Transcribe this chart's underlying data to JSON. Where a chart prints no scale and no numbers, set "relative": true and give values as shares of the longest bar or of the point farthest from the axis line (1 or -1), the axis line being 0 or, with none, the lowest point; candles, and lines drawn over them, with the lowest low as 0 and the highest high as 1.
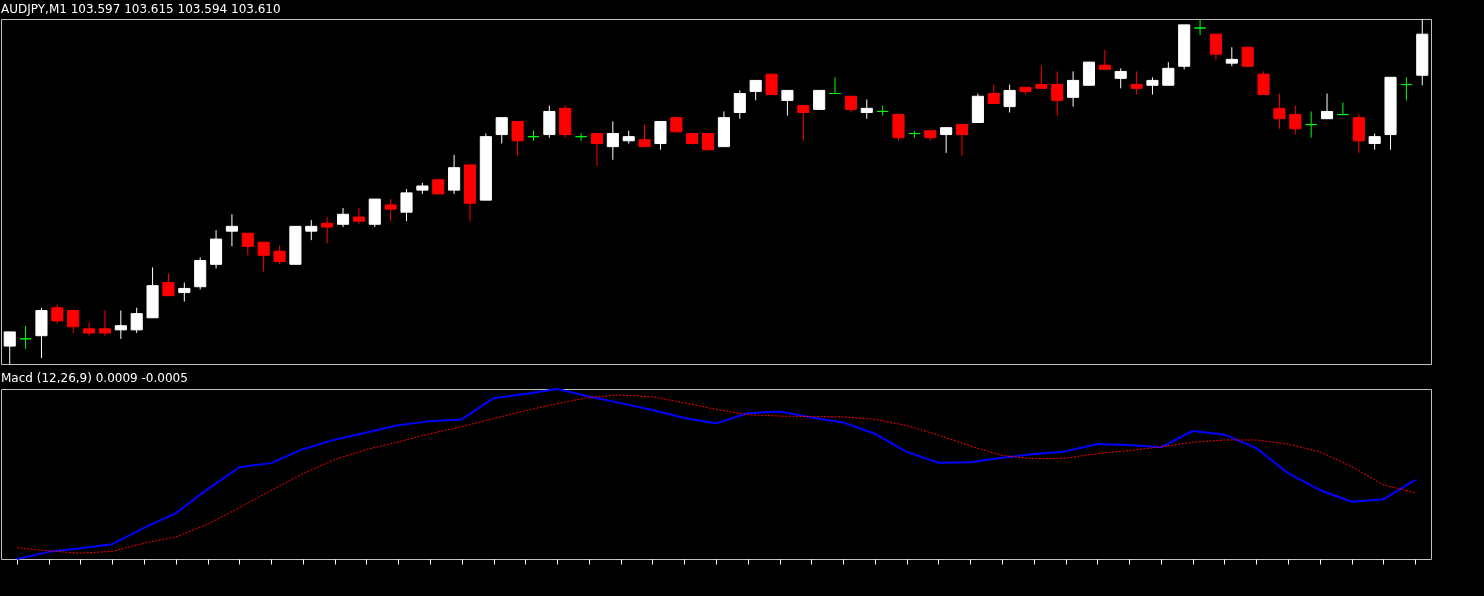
{
  "chart_data": [
    {
      "type": "candlestick",
      "title": "AUDJPY,M1  103.597 103.615 103.594 103.610",
      "relative": true,
      "tick_labels": false,
      "categories": [
        null,
        null,
        null,
        null,
        null,
        null,
        null,
        null,
        null,
        null,
        null,
        null,
        null,
        null,
        null,
        null,
        null,
        null,
        null,
        null,
        null,
        null,
        null,
        null,
        null,
        null,
        null,
        null,
        null,
        null,
        null,
        null,
        null,
        null,
        null,
        null,
        null,
        null,
        null,
        null,
        null,
        null,
        null,
        null,
        null,
        null,
        null,
        null,
        null,
        null,
        null,
        null,
        null,
        null,
        null,
        null,
        null,
        null,
        null,
        null,
        null,
        null,
        null,
        null,
        null,
        null,
        null,
        null,
        null,
        null,
        null,
        null,
        null,
        null,
        null,
        null,
        null,
        null,
        null,
        null,
        null,
        null,
        null,
        null,
        null,
        null,
        null,
        null,
        null,
        null
      ],
      "ohlc": [
        [
          0.052,
          0.093,
          0,
          0.093
        ],
        [
          0.073,
          0.111,
          0.044,
          0.073
        ],
        [
          0.082,
          0.163,
          0.017,
          0.155
        ],
        [
          0.163,
          0.172,
          0.117,
          0.125
        ],
        [
          0.155,
          0.155,
          0.09,
          0.108
        ],
        [
          0.102,
          0.12,
          0.082,
          0.09
        ],
        [
          0.102,
          0.155,
          0.082,
          0.09
        ],
        [
          0.099,
          0.155,
          0.073,
          0.111
        ],
        [
          0.099,
          0.163,
          0.09,
          0.146
        ],
        [
          0.134,
          0.28,
          0.134,
          0.227
        ],
        [
          0.236,
          0.262,
          0.198,
          0.198
        ],
        [
          0.207,
          0.236,
          0.181,
          0.219
        ],
        [
          0.224,
          0.309,
          0.216,
          0.3
        ],
        [
          0.289,
          0.388,
          0.277,
          0.362
        ],
        [
          0.385,
          0.434,
          0.341,
          0.399
        ],
        [
          0.379,
          0.379,
          0.315,
          0.341
        ],
        [
          0.353,
          0.353,
          0.268,
          0.315
        ],
        [
          0.327,
          0.344,
          0.289,
          0.297
        ],
        [
          0.289,
          0.399,
          0.289,
          0.399
        ],
        [
          0.385,
          0.417,
          0.359,
          0.399
        ],
        [
          0.408,
          0.426,
          0.35,
          0.397
        ],
        [
          0.405,
          0.452,
          0.397,
          0.434
        ],
        [
          0.426,
          0.452,
          0.405,
          0.414
        ],
        [
          0.405,
          0.478,
          0.397,
          0.478
        ],
        [
          0.461,
          0.478,
          0.414,
          0.449
        ],
        [
          0.44,
          0.507,
          0.414,
          0.496
        ],
        [
          0.504,
          0.525,
          0.493,
          0.516
        ],
        [
          0.534,
          0.534,
          0.493,
          0.493
        ],
        [
          0.504,
          0.606,
          0.493,
          0.569
        ],
        [
          0.577,
          0.577,
          0.414,
          0.466
        ],
        [
          0.475,
          0.668,
          0.475,
          0.659
        ],
        [
          0.665,
          0.714,
          0.639,
          0.714
        ],
        [
          0.703,
          0.703,
          0.604,
          0.647
        ],
        [
          0.659,
          0.676,
          0.647,
          0.659
        ],
        [
          0.665,
          0.749,
          0.656,
          0.732
        ],
        [
          0.741,
          0.749,
          0.656,
          0.665
        ],
        [
          0.659,
          0.668,
          0.647,
          0.659
        ],
        [
          0.668,
          0.668,
          0.574,
          0.639
        ],
        [
          0.63,
          0.703,
          0.592,
          0.668
        ],
        [
          0.647,
          0.676,
          0.639,
          0.659
        ],
        [
          0.65,
          0.694,
          0.63,
          0.63
        ],
        [
          0.639,
          0.703,
          0.621,
          0.703
        ],
        [
          0.714,
          0.714,
          0.673,
          0.673
        ],
        [
          0.668,
          0.668,
          0.639,
          0.639
        ],
        [
          0.668,
          0.668,
          0.621,
          0.621
        ],
        [
          0.63,
          0.732,
          0.63,
          0.714
        ],
        [
          0.729,
          0.793,
          0.711,
          0.784
        ],
        [
          0.79,
          0.822,
          0.764,
          0.822
        ],
        [
          0.84,
          0.84,
          0.781,
          0.781
        ],
        [
          0.764,
          0.793,
          0.72,
          0.793
        ],
        [
          0.749,
          0.749,
          0.647,
          0.729
        ],
        [
          0.738,
          0.793,
          0.738,
          0.793
        ],
        [
          0.784,
          0.831,
          0.784,
          0.784
        ],
        [
          0.776,
          0.776,
          0.729,
          0.738
        ],
        [
          0.729,
          0.767,
          0.711,
          0.741
        ],
        [
          0.732,
          0.749,
          0.72,
          0.732
        ],
        [
          0.723,
          0.723,
          0.647,
          0.656
        ],
        [
          0.668,
          0.676,
          0.656,
          0.668
        ],
        [
          0.676,
          0.676,
          0.647,
          0.656
        ],
        [
          0.665,
          0.685,
          0.612,
          0.685
        ],
        [
          0.694,
          0.694,
          0.604,
          0.665
        ],
        [
          0.7,
          0.784,
          0.7,
          0.776
        ],
        [
          0.784,
          0.81,
          0.755,
          0.755
        ],
        [
          0.746,
          0.81,
          0.729,
          0.793
        ],
        [
          0.802,
          0.802,
          0.781,
          0.79
        ],
        [
          0.81,
          0.866,
          0.799,
          0.799
        ],
        [
          0.81,
          0.848,
          0.72,
          0.764
        ],
        [
          0.773,
          0.848,
          0.746,
          0.822
        ],
        [
          0.808,
          0.875,
          0.808,
          0.875
        ],
        [
          0.866,
          0.91,
          0.854,
          0.854
        ],
        [
          0.828,
          0.857,
          0.799,
          0.848
        ],
        [
          0.81,
          0.848,
          0.781,
          0.799
        ],
        [
          0.808,
          0.831,
          0.781,
          0.822
        ],
        [
          0.808,
          0.875,
          0.808,
          0.857
        ],
        [
          0.863,
          0.983,
          0.854,
          0.983
        ],
        [
          0.974,
          1,
          0.953,
          0.974
        ],
        [
          0.956,
          0.956,
          0.88,
          0.898
        ],
        [
          0.872,
          0.918,
          0.863,
          0.883
        ],
        [
          0.918,
          0.918,
          0.863,
          0.863
        ],
        [
          0.84,
          0.848,
          0.781,
          0.781
        ],
        [
          0.741,
          0.784,
          0.682,
          0.711
        ],
        [
          0.723,
          0.749,
          0.665,
          0.682
        ],
        [
          0.694,
          0.732,
          0.656,
          0.694
        ],
        [
          0.711,
          0.784,
          0.711,
          0.732
        ],
        [
          0.723,
          0.758,
          0.723,
          0.723
        ],
        [
          0.714,
          0.723,
          0.612,
          0.647
        ],
        [
          0.639,
          0.668,
          0.621,
          0.659
        ],
        [
          0.665,
          0.831,
          0.621,
          0.831
        ],
        [
          0.81,
          0.831,
          0.764,
          0.81
        ],
        [
          0.837,
          1,
          0.808,
          0.956
        ]
      ],
      "colors": [
        "#ffffff",
        "#00ff00",
        "#ffffff",
        "#ff0000",
        "#ff0000",
        "#ff0000",
        "#ff0000",
        "#ffffff",
        "#ffffff",
        "#ffffff",
        "#ff0000",
        "#ffffff",
        "#ffffff",
        "#ffffff",
        "#ffffff",
        "#ff0000",
        "#ff0000",
        "#ff0000",
        "#ffffff",
        "#ffffff",
        "#ff0000",
        "#ffffff",
        "#ff0000",
        "#ffffff",
        "#ff0000",
        "#ffffff",
        "#ffffff",
        "#ff0000",
        "#ffffff",
        "#ff0000",
        "#ffffff",
        "#ffffff",
        "#ff0000",
        "#00ff00",
        "#ffffff",
        "#ff0000",
        "#00ff00",
        "#ff0000",
        "#ffffff",
        "#ffffff",
        "#ff0000",
        "#ffffff",
        "#ff0000",
        "#ff0000",
        "#ff0000",
        "#ffffff",
        "#ffffff",
        "#ffffff",
        "#ff0000",
        "#ffffff",
        "#ff0000",
        "#ffffff",
        "#00ff00",
        "#ff0000",
        "#ffffff",
        "#00ff00",
        "#ff0000",
        "#00ff00",
        "#ff0000",
        "#ffffff",
        "#ff0000",
        "#ffffff",
        "#ff0000",
        "#ffffff",
        "#ff0000",
        "#ff0000",
        "#ff0000",
        "#ffffff",
        "#ffffff",
        "#ff0000",
        "#ffffff",
        "#ff0000",
        "#ffffff",
        "#ffffff",
        "#ffffff",
        "#00ff00",
        "#ff0000",
        "#ffffff",
        "#ff0000",
        "#ff0000",
        "#ff0000",
        "#ff0000",
        "#00ff00",
        "#ffffff",
        "#00ff00",
        "#ff0000",
        "#ffffff",
        "#ffffff",
        "#00ff00",
        "#ffffff"
      ]
    },
    {
      "type": "line",
      "title": "Macd (12,26,9) 0.0009 -0.0005",
      "relative": true,
      "tick_labels": false,
      "categories": [
        null,
        null,
        null,
        null,
        null,
        null,
        null,
        null,
        null,
        null,
        null,
        null,
        null,
        null,
        null,
        null,
        null,
        null,
        null,
        null,
        null,
        null,
        null,
        null,
        null,
        null,
        null,
        null,
        null,
        null,
        null,
        null,
        null,
        null,
        null,
        null,
        null,
        null,
        null,
        null,
        null,
        null,
        null,
        null,
        null
      ],
      "series": [
        {
          "color": "#0000ff",
          "line_style": "solid",
          "values": [
            0,
            0.042,
            0.063,
            0.087,
            0.183,
            0.27,
            0.411,
            0.54,
            0.564,
            0.646,
            0.702,
            0.744,
            0.787,
            0.811,
            0.821,
            0.946,
            0.97,
            1,
            0.956,
            0.917,
            0.877,
            0.829,
            0.798,
            0.857,
            0.868,
            0.833,
            0.803,
            0.737,
            0.63,
            0.566,
            0.569,
            0.596,
            0.617,
            0.633,
            0.676,
            0.67,
            0.657,
            0.753,
            0.732,
            0.652,
            0.505,
            0.406,
            0.337,
            0.351,
            0.465
          ]
        },
        {
          "color": "#ff0000",
          "line_style": "dotted",
          "values": [
            0.066,
            0.048,
            0.034,
            0.045,
            0.093,
            0.13,
            0.204,
            0.302,
            0.403,
            0.503,
            0.585,
            0.644,
            0.689,
            0.737,
            0.779,
            0.826,
            0.872,
            0.914,
            0.951,
            0.965,
            0.954,
            0.919,
            0.88,
            0.849,
            0.841,
            0.838,
            0.836,
            0.822,
            0.785,
            0.729,
            0.665,
            0.609,
            0.59,
            0.593,
            0.62,
            0.638,
            0.66,
            0.687,
            0.7,
            0.7,
            0.676,
            0.63,
            0.545,
            0.436,
            0.39
          ]
        }
      ]
    }
  ]
}
